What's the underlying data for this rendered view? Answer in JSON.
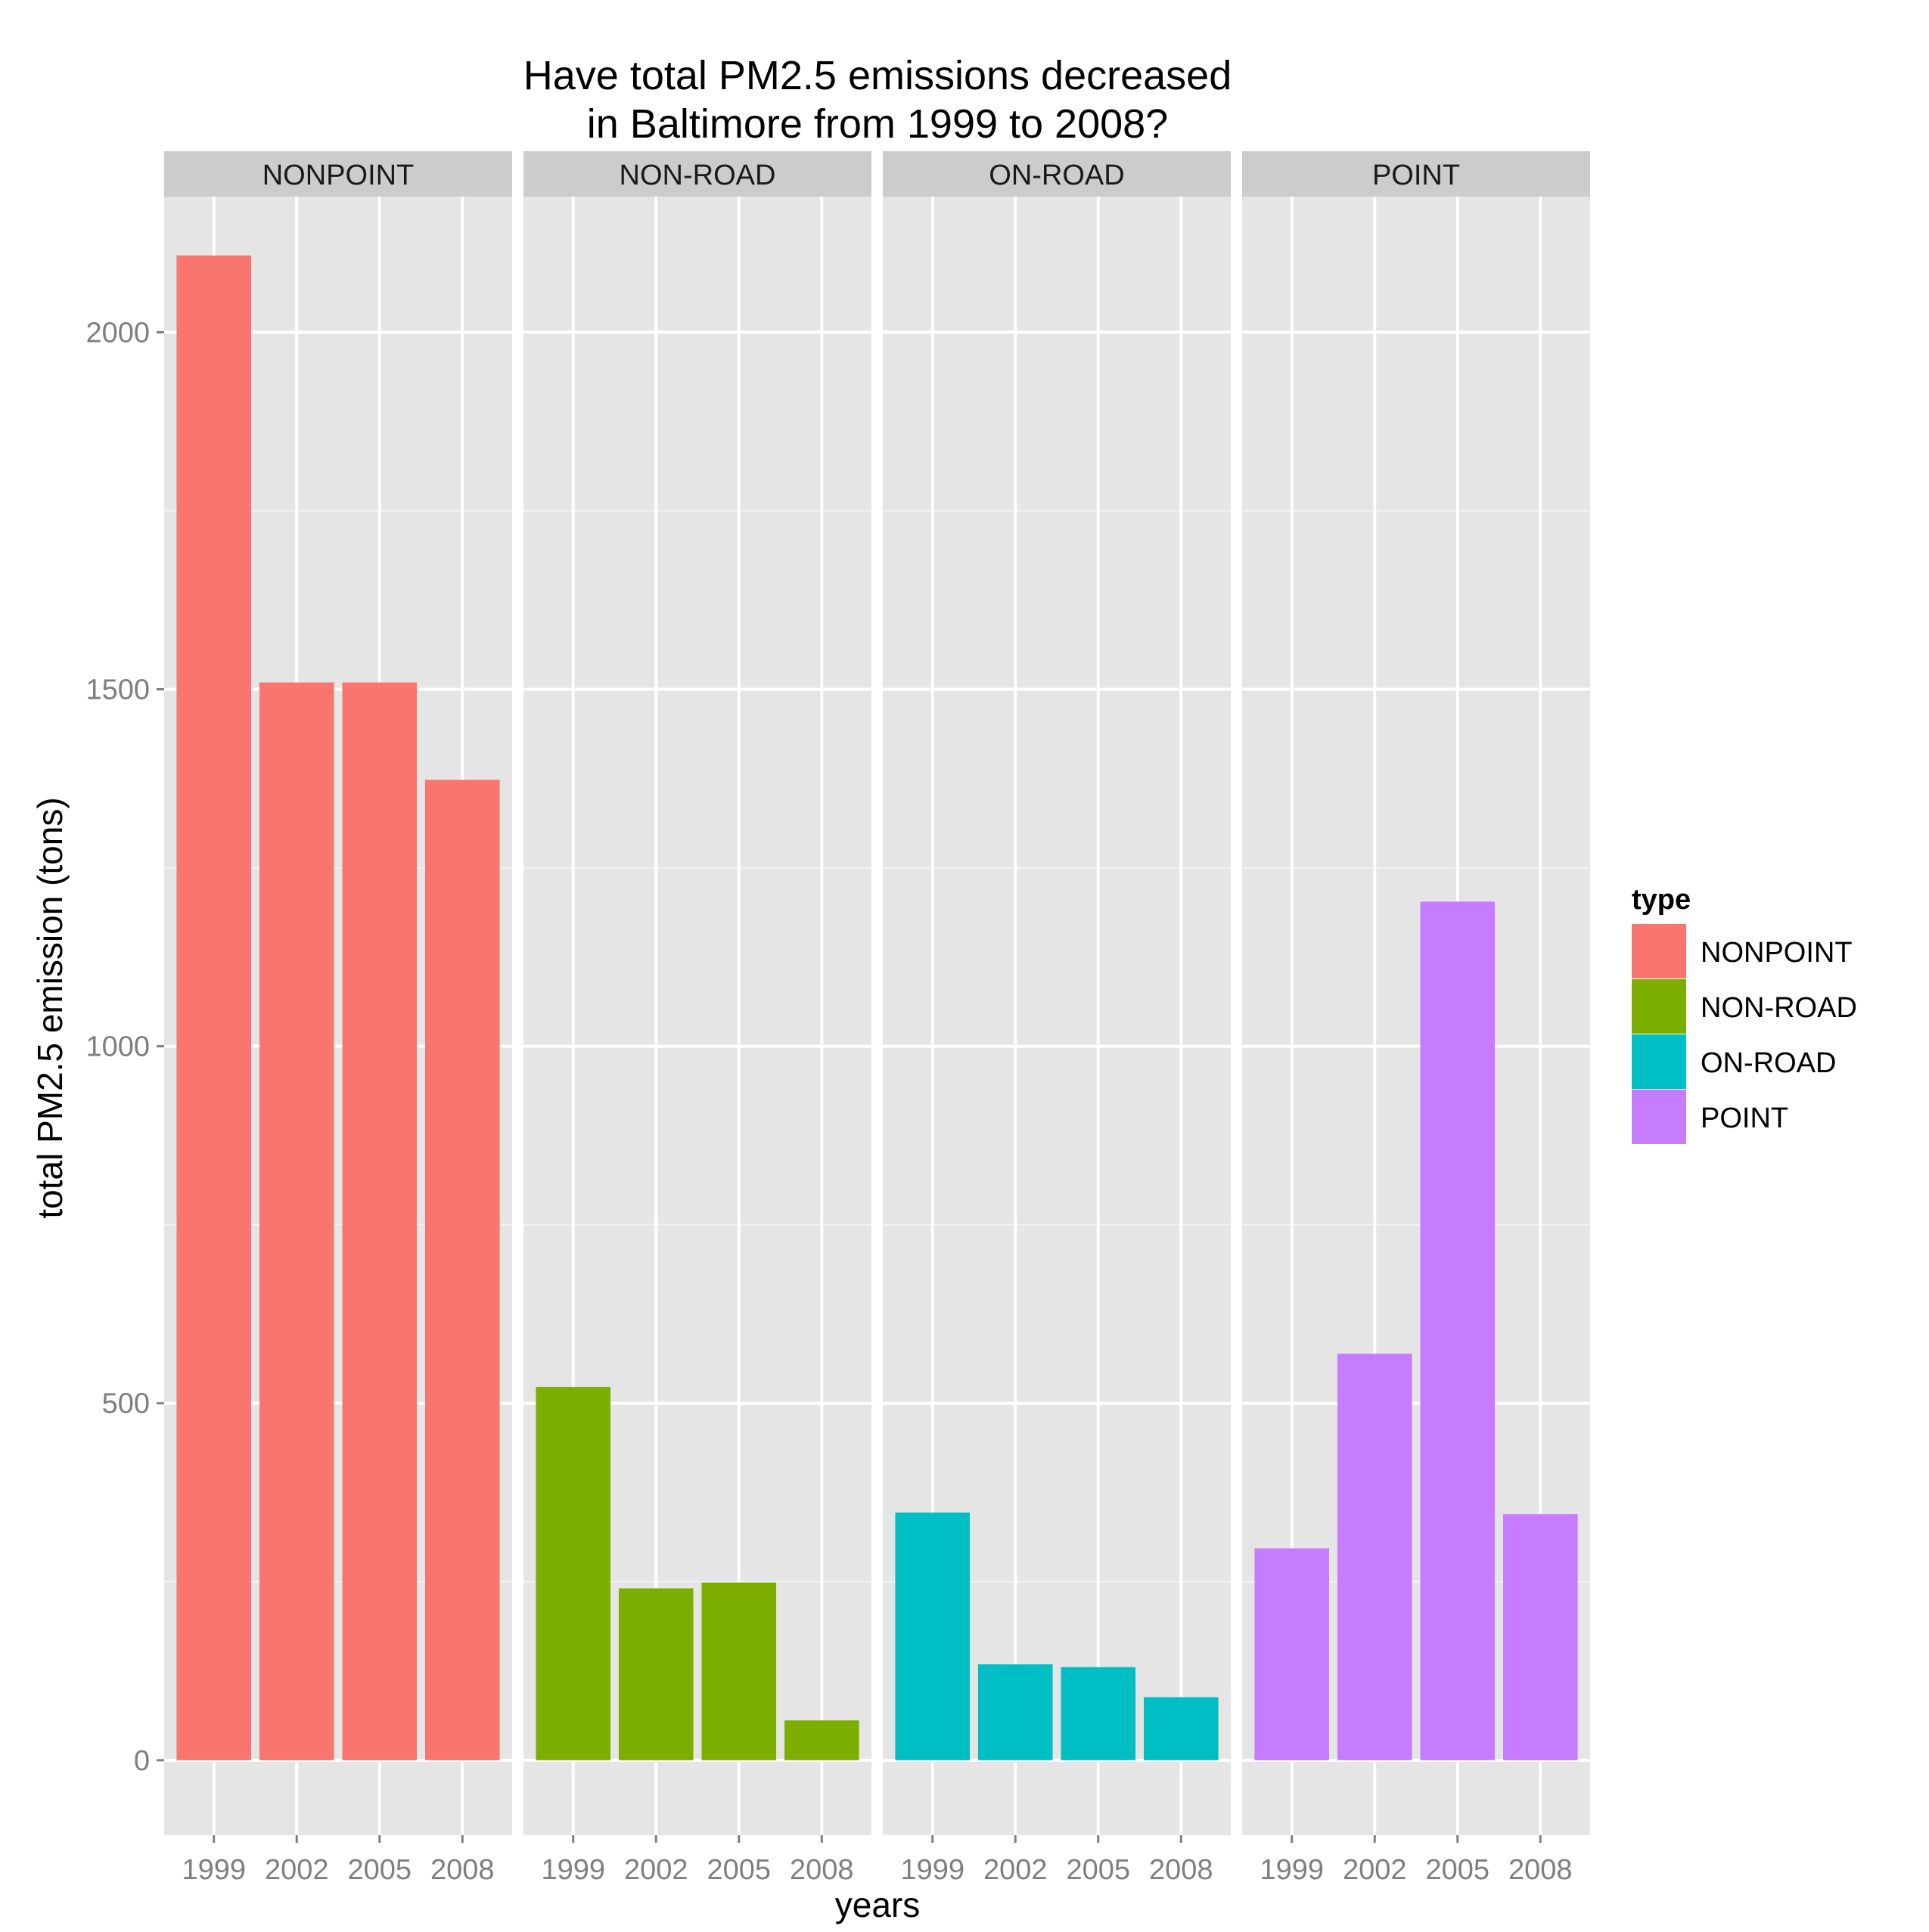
{
  "chart_data": {
    "type": "bar",
    "title": "Have total PM2.5 emissions decreased\nin Baltimore from 1999 to 2008?",
    "xlabel": "years",
    "ylabel": "total PM2.5 emission (tons)",
    "ylim": [
      -105,
      2190
    ],
    "yticks": [
      0,
      500,
      1000,
      1500,
      2000
    ],
    "minor_yticks": [
      250,
      750,
      1250,
      1750
    ],
    "categories": [
      "1999",
      "2002",
      "2005",
      "2008"
    ],
    "grid": true,
    "legend_position": "right",
    "legend_title": "type",
    "facets": [
      {
        "name": "NONPOINT",
        "color": "#F8766D",
        "values": [
          2107.6,
          1509.5,
          1509.5,
          1373.2
        ]
      },
      {
        "name": "NON-ROAD",
        "color": "#7CAE00",
        "values": [
          522.9,
          240.8,
          248.9,
          55.8
        ]
      },
      {
        "name": "ON-ROAD",
        "color": "#00BFC4",
        "values": [
          346.8,
          134.3,
          130.4,
          88.3
        ]
      },
      {
        "name": "POINT",
        "color": "#C77CFF",
        "values": [
          296.8,
          569.3,
          1202.5,
          344.9
        ]
      }
    ]
  }
}
